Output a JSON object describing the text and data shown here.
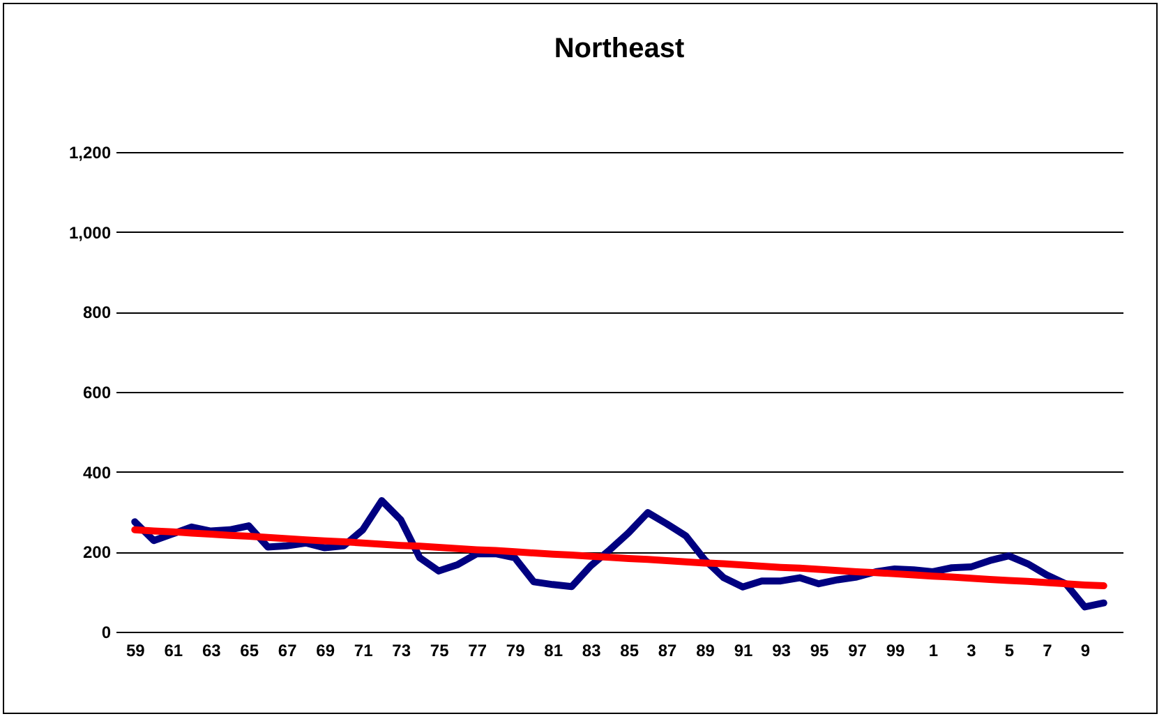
{
  "chart_data": {
    "type": "line",
    "title": "Northeast",
    "categories": [
      "59",
      null,
      "61",
      null,
      "63",
      null,
      "65",
      null,
      "67",
      null,
      "69",
      null,
      "71",
      null,
      "73",
      null,
      "75",
      null,
      "77",
      null,
      "79",
      null,
      "81",
      null,
      "83",
      null,
      "85",
      null,
      "87",
      null,
      "89",
      null,
      "91",
      null,
      "93",
      null,
      "95",
      null,
      "97",
      null,
      "99",
      null,
      "1",
      null,
      "3",
      null,
      "5",
      null,
      "7",
      null,
      "9",
      null
    ],
    "series": [
      {
        "color": "#000080",
        "values": [
          275,
          228,
          245,
          262,
          252,
          255,
          265,
          212,
          215,
          222,
          210,
          215,
          255,
          328,
          280,
          185,
          152,
          168,
          195,
          195,
          185,
          125,
          118,
          113,
          165,
          205,
          248,
          298,
          270,
          240,
          180,
          135,
          112,
          127,
          127,
          135,
          120,
          130,
          137,
          150,
          157,
          155,
          150,
          160,
          162,
          178,
          190,
          170,
          142,
          120,
          62,
          72
        ]
      },
      {
        "type": "line",
        "color": "#ff0000",
        "values": [
          255,
          252,
          250,
          247,
          244,
          241,
          239,
          236,
          233,
          230,
          227,
          225,
          222,
          219,
          216,
          214,
          211,
          208,
          205,
          203,
          200,
          197,
          194,
          192,
          189,
          186,
          183,
          181,
          178,
          175,
          172,
          170,
          167,
          164,
          161,
          159,
          156,
          153,
          150,
          148,
          145,
          142,
          139,
          137,
          134,
          131,
          128,
          126,
          123,
          120,
          117,
          115
        ]
      }
    ],
    "ylim": [
      0,
      1200
    ],
    "yticks": [
      0,
      200,
      400,
      600,
      800,
      {
        "value": 1000,
        "label": "1,000"
      },
      {
        "value": 1200,
        "label": "1,200"
      }
    ],
    "grid": "y"
  }
}
